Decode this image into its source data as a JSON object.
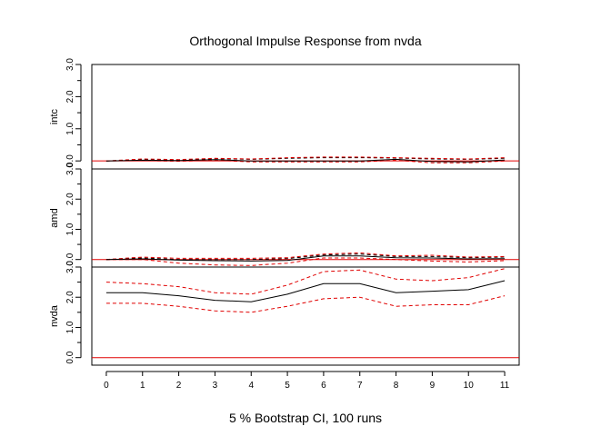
{
  "chart_data": {
    "type": "line",
    "title": "Orthogonal Impulse Response from nvda",
    "subtitle": "5 % Bootstrap CI,  100 runs",
    "x": [
      0,
      1,
      2,
      3,
      4,
      5,
      6,
      7,
      8,
      9,
      10,
      11
    ],
    "x_tick_labels": [
      "0",
      "1",
      "2",
      "3",
      "4",
      "5",
      "6",
      "7",
      "8",
      "9",
      "10",
      "11"
    ],
    "xlim": [
      -0.4,
      11.4
    ],
    "ylim": [
      -0.25,
      3.0
    ],
    "y_tick_labels": [
      "0.0",
      "1.0",
      "2.0",
      "3.0"
    ],
    "y_ticks": [
      0,
      1,
      2,
      3
    ],
    "panels": [
      {
        "name": "intc",
        "response": [
          0.0,
          0.02,
          0.01,
          0.04,
          0.0,
          0.0,
          0.0,
          0.0,
          0.05,
          -0.02,
          -0.03,
          0.03
        ],
        "lower": [
          0.0,
          0.01,
          -0.01,
          0.02,
          -0.03,
          -0.03,
          -0.03,
          -0.03,
          0.02,
          -0.06,
          -0.06,
          0.0
        ],
        "upper": [
          0.0,
          0.06,
          0.04,
          0.08,
          0.06,
          0.1,
          0.12,
          0.12,
          0.1,
          0.08,
          0.06,
          0.1
        ],
        "black_lower": [
          0.0,
          0.04,
          0.03,
          0.07,
          0.05,
          0.08,
          0.1,
          0.1,
          0.09,
          0.06,
          0.05,
          0.08
        ]
      },
      {
        "name": "amd",
        "response": [
          0.0,
          0.02,
          -0.02,
          -0.04,
          -0.05,
          -0.03,
          0.12,
          0.12,
          0.06,
          0.05,
          0.02,
          0.03
        ],
        "lower": [
          0.0,
          0.0,
          -0.12,
          -0.18,
          -0.2,
          -0.12,
          0.05,
          0.05,
          0.0,
          -0.05,
          -0.08,
          -0.04
        ],
        "upper": [
          0.0,
          0.08,
          0.04,
          0.04,
          0.04,
          0.06,
          0.18,
          0.22,
          0.12,
          0.14,
          0.08,
          0.1
        ],
        "black_lower": [
          0.0,
          0.05,
          0.0,
          0.0,
          0.0,
          0.03,
          0.15,
          0.18,
          0.1,
          0.1,
          0.06,
          0.08
        ]
      },
      {
        "name": "nvda",
        "response": [
          2.15,
          2.15,
          2.05,
          1.9,
          1.85,
          2.1,
          2.45,
          2.45,
          2.15,
          2.2,
          2.25,
          2.55
        ],
        "lower": [
          1.8,
          1.8,
          1.7,
          1.55,
          1.5,
          1.7,
          1.95,
          2.0,
          1.7,
          1.75,
          1.75,
          2.05
        ],
        "upper": [
          2.5,
          2.45,
          2.35,
          2.15,
          2.1,
          2.4,
          2.85,
          2.9,
          2.6,
          2.55,
          2.65,
          2.95
        ]
      }
    ],
    "colors": {
      "response": "#000000",
      "ci": "#e00000",
      "zero_line": "#e00000",
      "axis": "#000000"
    }
  }
}
